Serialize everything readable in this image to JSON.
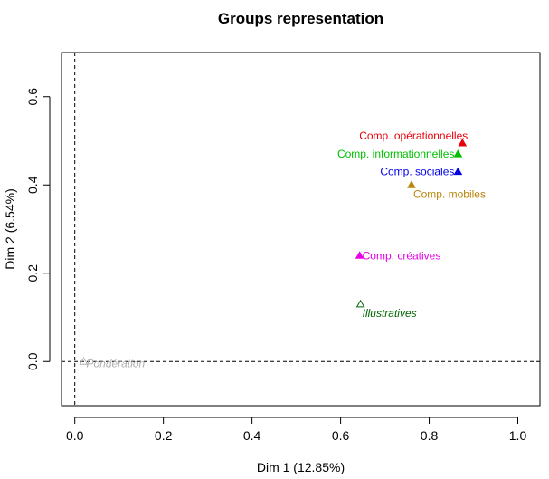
{
  "chart_data": {
    "type": "scatter",
    "title": "Groups representation",
    "xlabel": "Dim 1 (12.85%)",
    "ylabel": "Dim 2 (6.54%)",
    "xlim": [
      -0.03,
      1.05
    ],
    "ylim": [
      -0.1,
      0.7
    ],
    "x_ticks": [
      "0.0",
      "0.2",
      "0.4",
      "0.6",
      "0.8",
      "1.0"
    ],
    "y_ticks": [
      "0.0",
      "0.2",
      "0.4",
      "0.6"
    ],
    "reference_lines": {
      "x": 0,
      "y": 0,
      "style": "dashed"
    },
    "grid": false,
    "points": [
      {
        "label": "Comp. opérationnelles",
        "x": 0.875,
        "y": 0.495,
        "color": "#e8000b",
        "marker": "filled-triangle",
        "italic": false,
        "label_anchor": "end",
        "label_dx": 6,
        "label_dy": -4
      },
      {
        "label": "Comp. informationnelles",
        "x": 0.865,
        "y": 0.47,
        "color": "#00c000",
        "marker": "filled-triangle",
        "italic": false,
        "label_anchor": "end",
        "label_dx": -4,
        "label_dy": 4
      },
      {
        "label": "Comp. sociales",
        "x": 0.865,
        "y": 0.43,
        "color": "#0000e8",
        "marker": "filled-triangle",
        "italic": false,
        "label_anchor": "end",
        "label_dx": -4,
        "label_dy": 4
      },
      {
        "label": "Comp. mobiles",
        "x": 0.76,
        "y": 0.4,
        "color": "#b8860b",
        "marker": "filled-triangle",
        "italic": false,
        "label_anchor": "start",
        "label_dx": 2,
        "label_dy": 14
      },
      {
        "label": "Comp. créatives",
        "x": 0.643,
        "y": 0.24,
        "color": "#e800e8",
        "marker": "filled-triangle",
        "italic": false,
        "label_anchor": "start",
        "label_dx": 3,
        "label_dy": 4
      },
      {
        "label": "Illustratives",
        "x": 0.645,
        "y": 0.13,
        "color": "#006400",
        "marker": "open-triangle",
        "italic": true,
        "label_anchor": "start",
        "label_dx": 2,
        "label_dy": 14
      },
      {
        "label": "Pondération",
        "x": 0.02,
        "y": 0.0,
        "color": "#b0b0b0",
        "marker": "open-triangle",
        "italic": true,
        "label_anchor": "start",
        "label_dx": 3,
        "label_dy": 6
      }
    ]
  }
}
